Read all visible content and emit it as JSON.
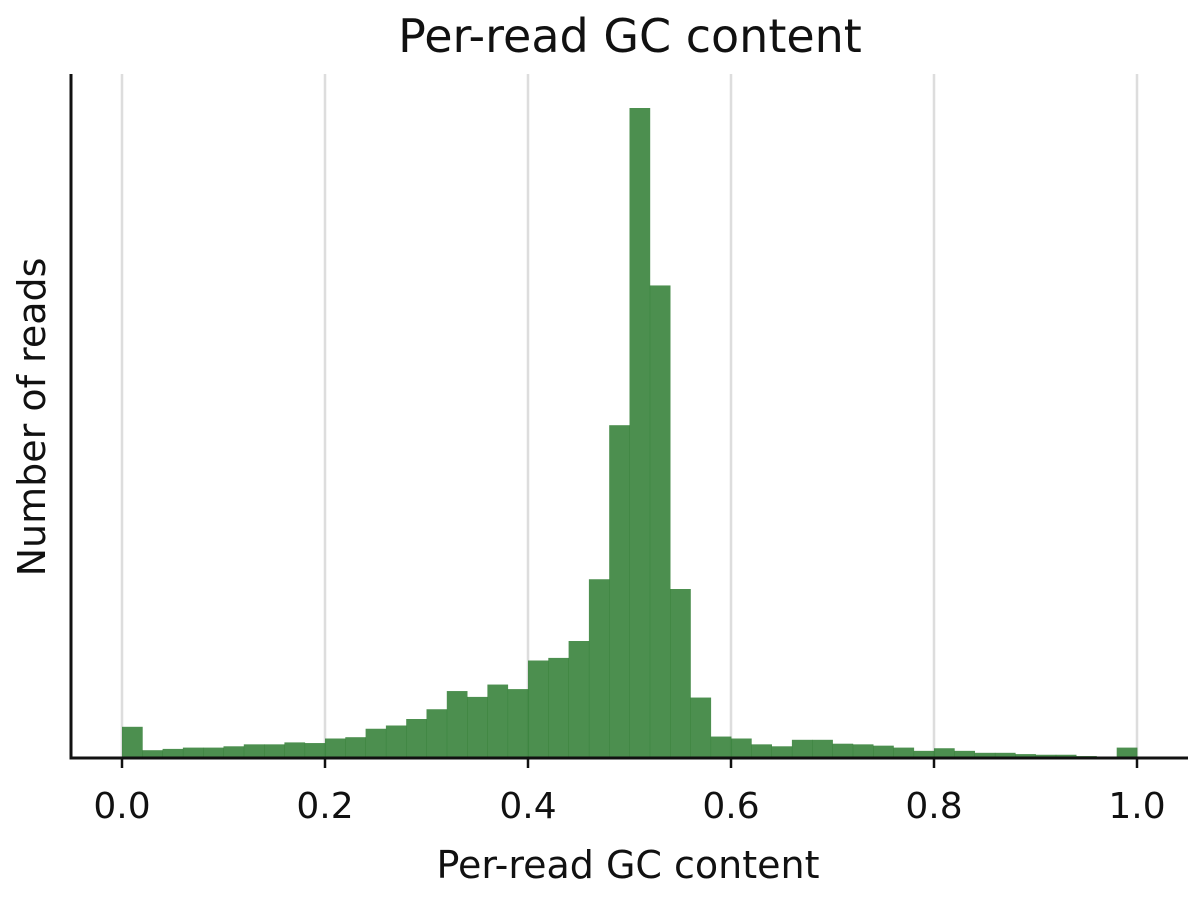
{
  "chart_data": {
    "type": "bar",
    "title": "Per-read GC content",
    "xlabel": "Per-read GC content",
    "ylabel": "Number of reads",
    "xlim": [
      -0.025,
      1.025
    ],
    "ylim": [
      0,
      1.06
    ],
    "y_tick_labels_shown": false,
    "x_ticks": [
      "0.0",
      "0.2",
      "0.4",
      "0.6",
      "0.8",
      "1.0"
    ],
    "x_tick_values": [
      0.0,
      0.2,
      0.4,
      0.6,
      0.8,
      1.0
    ],
    "grid": "vertical",
    "bar_color": "#2e7d32",
    "bin_width": 0.02,
    "bin_starts": [
      0.0,
      0.02,
      0.04,
      0.06,
      0.08,
      0.1,
      0.12,
      0.14,
      0.16,
      0.18,
      0.2,
      0.22,
      0.24,
      0.26,
      0.28,
      0.3,
      0.32,
      0.34,
      0.36,
      0.38,
      0.4,
      0.42,
      0.44,
      0.46,
      0.48,
      0.5,
      0.52,
      0.54,
      0.56,
      0.58,
      0.6,
      0.62,
      0.64,
      0.66,
      0.68,
      0.7,
      0.72,
      0.74,
      0.76,
      0.78,
      0.8,
      0.82,
      0.84,
      0.86,
      0.88,
      0.9,
      0.92,
      0.94,
      0.96,
      0.98
    ],
    "values": [
      0.048,
      0.012,
      0.014,
      0.016,
      0.016,
      0.018,
      0.021,
      0.021,
      0.024,
      0.023,
      0.03,
      0.032,
      0.045,
      0.05,
      0.06,
      0.075,
      0.103,
      0.094,
      0.113,
      0.106,
      0.15,
      0.154,
      0.18,
      0.275,
      0.512,
      1.0,
      0.727,
      0.26,
      0.093,
      0.033,
      0.03,
      0.021,
      0.018,
      0.028,
      0.028,
      0.022,
      0.021,
      0.019,
      0.016,
      0.011,
      0.015,
      0.011,
      0.008,
      0.008,
      0.006,
      0.005,
      0.005,
      0.003,
      0.002,
      0.016
    ]
  }
}
